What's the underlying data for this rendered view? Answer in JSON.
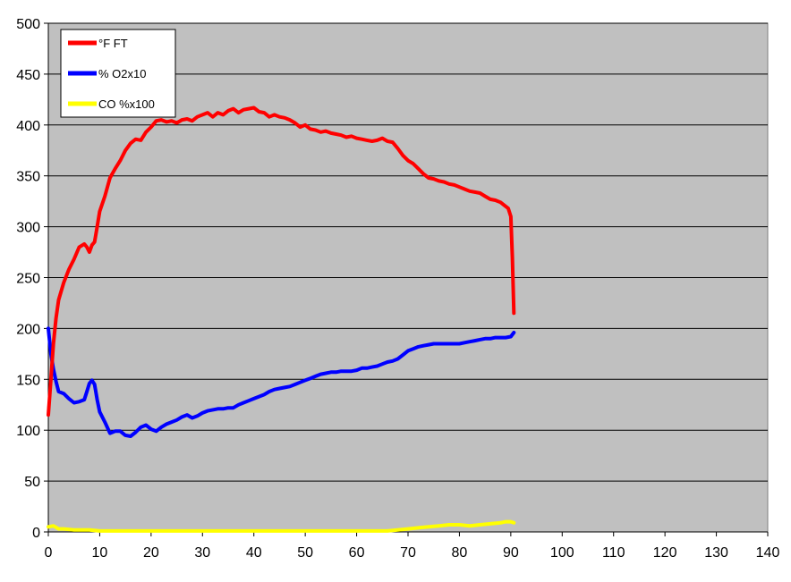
{
  "chart_data": {
    "type": "line",
    "title": "",
    "xlabel": "",
    "ylabel": "",
    "xlim": [
      0,
      140
    ],
    "ylim": [
      0,
      500
    ],
    "x_ticks": [
      0,
      10,
      20,
      30,
      40,
      50,
      60,
      70,
      80,
      90,
      100,
      110,
      120,
      130,
      140
    ],
    "y_ticks": [
      0,
      50,
      100,
      150,
      200,
      250,
      300,
      350,
      400,
      450,
      500
    ],
    "grid": "horizontal",
    "plot_background": "#c0c0c0",
    "legend_position": "top-left",
    "series": [
      {
        "name": "°F FT",
        "color": "#ff0000",
        "points": [
          [
            0,
            115
          ],
          [
            0.5,
            150
          ],
          [
            1,
            185
          ],
          [
            1.5,
            210
          ],
          [
            2,
            228
          ],
          [
            3,
            245
          ],
          [
            4,
            258
          ],
          [
            5,
            268
          ],
          [
            6,
            280
          ],
          [
            7,
            283
          ],
          [
            7.5,
            280
          ],
          [
            8,
            275
          ],
          [
            8.5,
            282
          ],
          [
            9,
            285
          ],
          [
            9.5,
            300
          ],
          [
            10,
            315
          ],
          [
            11,
            330
          ],
          [
            12,
            348
          ],
          [
            13,
            357
          ],
          [
            14,
            365
          ],
          [
            15,
            375
          ],
          [
            16,
            382
          ],
          [
            17,
            386
          ],
          [
            18,
            385
          ],
          [
            19,
            393
          ],
          [
            20,
            398
          ],
          [
            21,
            404
          ],
          [
            22,
            405
          ],
          [
            23,
            403
          ],
          [
            24,
            404
          ],
          [
            25,
            402
          ],
          [
            26,
            405
          ],
          [
            27,
            406
          ],
          [
            28,
            404
          ],
          [
            29,
            408
          ],
          [
            30,
            410
          ],
          [
            31,
            412
          ],
          [
            32,
            408
          ],
          [
            33,
            412
          ],
          [
            34,
            410
          ],
          [
            35,
            414
          ],
          [
            36,
            416
          ],
          [
            37,
            412
          ],
          [
            38,
            415
          ],
          [
            39,
            416
          ],
          [
            40,
            417
          ],
          [
            41,
            413
          ],
          [
            42,
            412
          ],
          [
            43,
            408
          ],
          [
            44,
            410
          ],
          [
            45,
            408
          ],
          [
            46,
            407
          ],
          [
            47,
            405
          ],
          [
            48,
            402
          ],
          [
            49,
            398
          ],
          [
            50,
            400
          ],
          [
            51,
            396
          ],
          [
            52,
            395
          ],
          [
            53,
            393
          ],
          [
            54,
            394
          ],
          [
            55,
            392
          ],
          [
            56,
            391
          ],
          [
            57,
            390
          ],
          [
            58,
            388
          ],
          [
            59,
            389
          ],
          [
            60,
            387
          ],
          [
            61,
            386
          ],
          [
            62,
            385
          ],
          [
            63,
            384
          ],
          [
            64,
            385
          ],
          [
            65,
            387
          ],
          [
            66,
            384
          ],
          [
            67,
            383
          ],
          [
            68,
            377
          ],
          [
            69,
            370
          ],
          [
            70,
            365
          ],
          [
            71,
            362
          ],
          [
            72,
            357
          ],
          [
            73,
            352
          ],
          [
            74,
            348
          ],
          [
            75,
            347
          ],
          [
            76,
            345
          ],
          [
            77,
            344
          ],
          [
            78,
            342
          ],
          [
            79,
            341
          ],
          [
            80,
            339
          ],
          [
            81,
            337
          ],
          [
            82,
            335
          ],
          [
            83,
            334
          ],
          [
            84,
            333
          ],
          [
            85,
            330
          ],
          [
            86,
            327
          ],
          [
            87,
            326
          ],
          [
            88,
            324
          ],
          [
            89,
            320
          ],
          [
            89.5,
            318
          ],
          [
            90,
            310
          ],
          [
            90.3,
            270
          ],
          [
            90.6,
            215
          ]
        ]
      },
      {
        "name": "% O2x10",
        "color": "#0000ff",
        "points": [
          [
            0,
            200
          ],
          [
            0.5,
            175
          ],
          [
            1,
            160
          ],
          [
            1.5,
            148
          ],
          [
            2,
            138
          ],
          [
            3,
            136
          ],
          [
            4,
            131
          ],
          [
            5,
            127
          ],
          [
            6,
            128
          ],
          [
            7,
            130
          ],
          [
            7.5,
            138
          ],
          [
            8,
            146
          ],
          [
            8.5,
            149
          ],
          [
            9,
            145
          ],
          [
            9.5,
            130
          ],
          [
            10,
            118
          ],
          [
            11,
            108
          ],
          [
            12,
            97
          ],
          [
            13,
            99
          ],
          [
            14,
            99
          ],
          [
            15,
            95
          ],
          [
            16,
            94
          ],
          [
            17,
            98
          ],
          [
            18,
            103
          ],
          [
            19,
            105
          ],
          [
            20,
            101
          ],
          [
            21,
            99
          ],
          [
            22,
            103
          ],
          [
            23,
            106
          ],
          [
            24,
            108
          ],
          [
            25,
            110
          ],
          [
            26,
            113
          ],
          [
            27,
            115
          ],
          [
            28,
            112
          ],
          [
            29,
            114
          ],
          [
            30,
            117
          ],
          [
            31,
            119
          ],
          [
            32,
            120
          ],
          [
            33,
            121
          ],
          [
            34,
            121
          ],
          [
            35,
            122
          ],
          [
            36,
            122
          ],
          [
            37,
            125
          ],
          [
            38,
            127
          ],
          [
            39,
            129
          ],
          [
            40,
            131
          ],
          [
            41,
            133
          ],
          [
            42,
            135
          ],
          [
            43,
            138
          ],
          [
            44,
            140
          ],
          [
            45,
            141
          ],
          [
            46,
            142
          ],
          [
            47,
            143
          ],
          [
            48,
            145
          ],
          [
            49,
            147
          ],
          [
            50,
            149
          ],
          [
            51,
            151
          ],
          [
            52,
            153
          ],
          [
            53,
            155
          ],
          [
            54,
            156
          ],
          [
            55,
            157
          ],
          [
            56,
            157
          ],
          [
            57,
            158
          ],
          [
            58,
            158
          ],
          [
            59,
            158
          ],
          [
            60,
            159
          ],
          [
            61,
            161
          ],
          [
            62,
            161
          ],
          [
            63,
            162
          ],
          [
            64,
            163
          ],
          [
            65,
            165
          ],
          [
            66,
            167
          ],
          [
            67,
            168
          ],
          [
            68,
            170
          ],
          [
            69,
            174
          ],
          [
            70,
            178
          ],
          [
            71,
            180
          ],
          [
            72,
            182
          ],
          [
            73,
            183
          ],
          [
            74,
            184
          ],
          [
            75,
            185
          ],
          [
            76,
            185
          ],
          [
            77,
            185
          ],
          [
            78,
            185
          ],
          [
            79,
            185
          ],
          [
            80,
            185
          ],
          [
            81,
            186
          ],
          [
            82,
            187
          ],
          [
            83,
            188
          ],
          [
            84,
            189
          ],
          [
            85,
            190
          ],
          [
            86,
            190
          ],
          [
            87,
            191
          ],
          [
            88,
            191
          ],
          [
            89,
            191
          ],
          [
            90,
            192
          ],
          [
            90.6,
            196
          ]
        ]
      },
      {
        "name": "CO %x100",
        "color": "#ffff00",
        "points": [
          [
            0,
            5
          ],
          [
            1,
            6
          ],
          [
            2,
            3
          ],
          [
            3,
            3
          ],
          [
            5,
            2
          ],
          [
            8,
            2
          ],
          [
            10,
            1
          ],
          [
            15,
            1
          ],
          [
            20,
            1
          ],
          [
            25,
            1
          ],
          [
            30,
            1
          ],
          [
            35,
            1
          ],
          [
            40,
            1
          ],
          [
            45,
            1
          ],
          [
            50,
            1
          ],
          [
            55,
            1
          ],
          [
            60,
            1
          ],
          [
            64,
            1
          ],
          [
            66,
            1
          ],
          [
            68,
            2
          ],
          [
            70,
            3
          ],
          [
            72,
            4
          ],
          [
            74,
            5
          ],
          [
            76,
            6
          ],
          [
            78,
            7
          ],
          [
            80,
            7
          ],
          [
            82,
            6
          ],
          [
            84,
            7
          ],
          [
            86,
            8
          ],
          [
            88,
            9
          ],
          [
            89,
            10
          ],
          [
            90,
            10
          ],
          [
            90.6,
            9
          ]
        ]
      }
    ]
  }
}
